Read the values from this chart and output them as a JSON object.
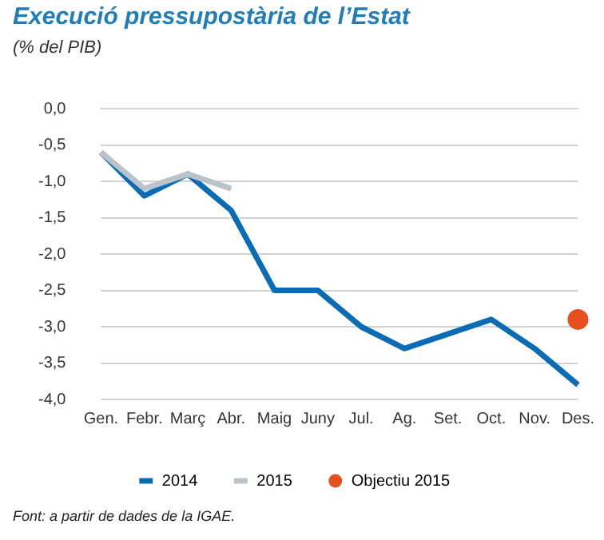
{
  "chart_data": {
    "type": "line",
    "title": "Execució pressupostària de l’Estat",
    "subtitle": "(% del PIB)",
    "annotations": [
      "Font: a partir de dades de la IGAE."
    ],
    "categories": [
      "Gen.",
      "Febr.",
      "Març",
      "Abr.",
      "Maig",
      "Juny",
      "Jul.",
      "Ag.",
      "Set.",
      "Oct.",
      "Nov.",
      "Des."
    ],
    "series": [
      {
        "name": "2014",
        "color": "#0a6cb4",
        "values": [
          -0.6,
          -1.2,
          -0.9,
          -1.4,
          -2.5,
          -2.5,
          -3.0,
          -3.3,
          -3.1,
          -2.9,
          -3.3,
          -3.8
        ]
      },
      {
        "name": "2015",
        "color": "#b9c3c9",
        "values": [
          -0.6,
          -1.1,
          -0.9,
          -1.1,
          null,
          null,
          null,
          null,
          null,
          null,
          null,
          null
        ]
      },
      {
        "name": "Objectiu 2015",
        "type": "scatter",
        "marker": "circle",
        "color": "#e5501e",
        "x": [
          "Des."
        ],
        "values": [
          -2.9
        ]
      }
    ],
    "ylim": [
      -4.0,
      0.0
    ],
    "yticks": [
      {
        "value": 0,
        "label": "0,0"
      },
      {
        "value": -0.5,
        "label": "-0,5"
      },
      {
        "value": -1.0,
        "label": "-1,0"
      },
      {
        "value": -1.5,
        "label": "-1,5"
      },
      {
        "value": -2.0,
        "label": "-2,0"
      },
      {
        "value": -2.5,
        "label": "-2,5"
      },
      {
        "value": -3.0,
        "label": "-3,0"
      },
      {
        "value": -3.5,
        "label": "-3,5"
      },
      {
        "value": -4.0,
        "label": "-4,0"
      }
    ],
    "grid": "y",
    "legend": "bottom",
    "marker": "none",
    "line_style": "solid"
  }
}
